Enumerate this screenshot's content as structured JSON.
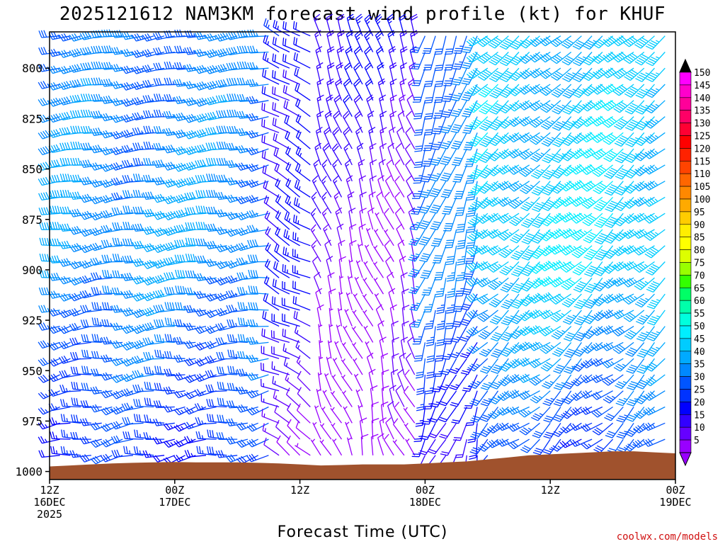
{
  "chart_data": {
    "type": "wind_barb_time_height",
    "title": "2025121612 NAM3KM forecast wind profile (kt) for KHUF",
    "xlabel": "Forecast Time (UTC)",
    "ylabel": "",
    "y_ticks": [
      "800",
      "825",
      "850",
      "875",
      "900",
      "925",
      "950",
      "975",
      "1000"
    ],
    "y_values": [
      800,
      825,
      850,
      875,
      900,
      925,
      950,
      975,
      1000
    ],
    "ylim": [
      782,
      1004
    ],
    "x_ticks": [
      {
        "line1": "12Z",
        "line2": "16DEC",
        "line3": "2025",
        "hour": 0
      },
      {
        "line1": "00Z",
        "line2": "17DEC",
        "line3": "",
        "hour": 12
      },
      {
        "line1": "12Z",
        "line2": "",
        "line3": "",
        "hour": 24
      },
      {
        "line1": "00Z",
        "line2": "18DEC",
        "line3": "",
        "hour": 36
      },
      {
        "line1": "12Z",
        "line2": "",
        "line3": "",
        "hour": 48
      },
      {
        "line1": "00Z",
        "line2": "19DEC",
        "line3": "",
        "hour": 60
      }
    ],
    "xlim_hours": [
      0,
      60
    ],
    "colorbar": {
      "levels": [
        "150",
        "145",
        "140",
        "135",
        "130",
        "125",
        "120",
        "115",
        "110",
        "105",
        "100",
        "95",
        "90",
        "85",
        "80",
        "75",
        "70",
        "65",
        "60",
        "55",
        "50",
        "45",
        "40",
        "35",
        "30",
        "25",
        "20",
        "15",
        "10",
        "5"
      ],
      "colors": [
        "#ff00ff",
        "#ff00cc",
        "#ff0099",
        "#ff0066",
        "#ff0033",
        "#ff0000",
        "#ff2200",
        "#ff4400",
        "#ff6600",
        "#ff8800",
        "#ffaa00",
        "#ffcc00",
        "#ffee00",
        "#ffff00",
        "#ddff00",
        "#99ff00",
        "#33ff00",
        "#00ff66",
        "#00ffaa",
        "#00ffdd",
        "#00eeff",
        "#00ccff",
        "#00aaff",
        "#0088ff",
        "#0055ff",
        "#0033ff",
        "#0000ff",
        "#3300ff",
        "#6600ff",
        "#9900ff"
      ],
      "top_arrow_color": "#000000",
      "bottom_arrow_color": "#9900ff"
    },
    "terrain": {
      "color": "#a0522d",
      "surface_pressure": [
        {
          "hour": 0,
          "p": 997.5
        },
        {
          "hour": 2,
          "p": 997
        },
        {
          "hour": 4,
          "p": 996.5
        },
        {
          "hour": 6,
          "p": 996
        },
        {
          "hour": 8,
          "p": 995.7
        },
        {
          "hour": 10,
          "p": 995.5
        },
        {
          "hour": 12,
          "p": 995.3
        },
        {
          "hour": 14,
          "p": 995.5
        },
        {
          "hour": 16,
          "p": 995.5
        },
        {
          "hour": 18,
          "p": 995.5
        },
        {
          "hour": 20,
          "p": 995.7
        },
        {
          "hour": 22,
          "p": 996
        },
        {
          "hour": 24,
          "p": 996.5
        },
        {
          "hour": 26,
          "p": 997
        },
        {
          "hour": 28,
          "p": 996.8
        },
        {
          "hour": 30,
          "p": 996.5
        },
        {
          "hour": 32,
          "p": 996.5
        },
        {
          "hour": 34,
          "p": 996.5
        },
        {
          "hour": 36,
          "p": 996
        },
        {
          "hour": 38,
          "p": 995.5
        },
        {
          "hour": 40,
          "p": 995
        },
        {
          "hour": 42,
          "p": 994
        },
        {
          "hour": 44,
          "p": 993
        },
        {
          "hour": 46,
          "p": 992
        },
        {
          "hour": 48,
          "p": 991.5
        },
        {
          "hour": 50,
          "p": 991
        },
        {
          "hour": 52,
          "p": 990.5
        },
        {
          "hour": 54,
          "p": 990
        },
        {
          "hour": 56,
          "p": 990
        },
        {
          "hour": 58,
          "p": 990.5
        },
        {
          "hour": 60,
          "p": 991
        }
      ]
    },
    "barb_levels_hpa": [
      784,
      792,
      800,
      808,
      816,
      824,
      832,
      840,
      848,
      856,
      864,
      872,
      880,
      888,
      896,
      904,
      912,
      920,
      928,
      936,
      944,
      952,
      960,
      968,
      976,
      984,
      992,
      1000
    ],
    "wind_regimes": [
      {
        "hour_start": 0,
        "hour_end": 22,
        "direction_deg": 260,
        "speed_kt_low": 25,
        "speed_kt_mid": 40,
        "speed_kt_high": 35
      },
      {
        "hour_start": 22,
        "hour_end": 26,
        "direction_deg": 300,
        "speed_kt_low": 10,
        "speed_kt_mid": 20,
        "speed_kt_high": 25
      },
      {
        "hour_start": 26,
        "hour_end": 36,
        "direction_deg": 340,
        "speed_kt_low": 5,
        "speed_kt_mid": 10,
        "speed_kt_high": 20
      },
      {
        "hour_start": 36,
        "hour_end": 42,
        "direction_deg": 200,
        "speed_kt_low": 20,
        "speed_kt_mid": 35,
        "speed_kt_high": 35
      },
      {
        "hour_start": 42,
        "hour_end": 60,
        "direction_deg": 230,
        "speed_kt_low": 25,
        "speed_kt_mid": 50,
        "speed_kt_high": 45
      }
    ],
    "credit": "coolwx.com/models"
  }
}
